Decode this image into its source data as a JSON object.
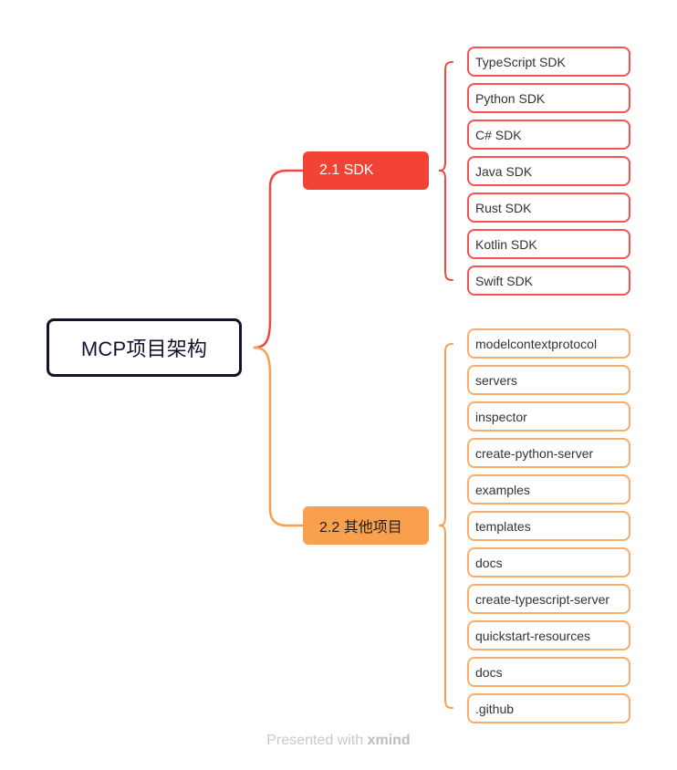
{
  "root": {
    "label": "MCP项目架构"
  },
  "branches": [
    {
      "label": "2.1 SDK",
      "color": "#f24336",
      "children": [
        "TypeScript SDK",
        "Python SDK",
        "C# SDK",
        "Java SDK",
        "Rust SDK",
        "Kotlin SDK",
        "Swift SDK"
      ]
    },
    {
      "label": "2.2 其他项目",
      "color": "#f9a04f",
      "children": [
        "modelcontextprotocol",
        "servers",
        "inspector",
        "create-python-server",
        "examples",
        "templates",
        "docs",
        "create-typescript-server",
        "quickstart-resources",
        "docs",
        ".github"
      ]
    }
  ],
  "footer": {
    "prefix": "Presented with",
    "brand": "xmind"
  }
}
